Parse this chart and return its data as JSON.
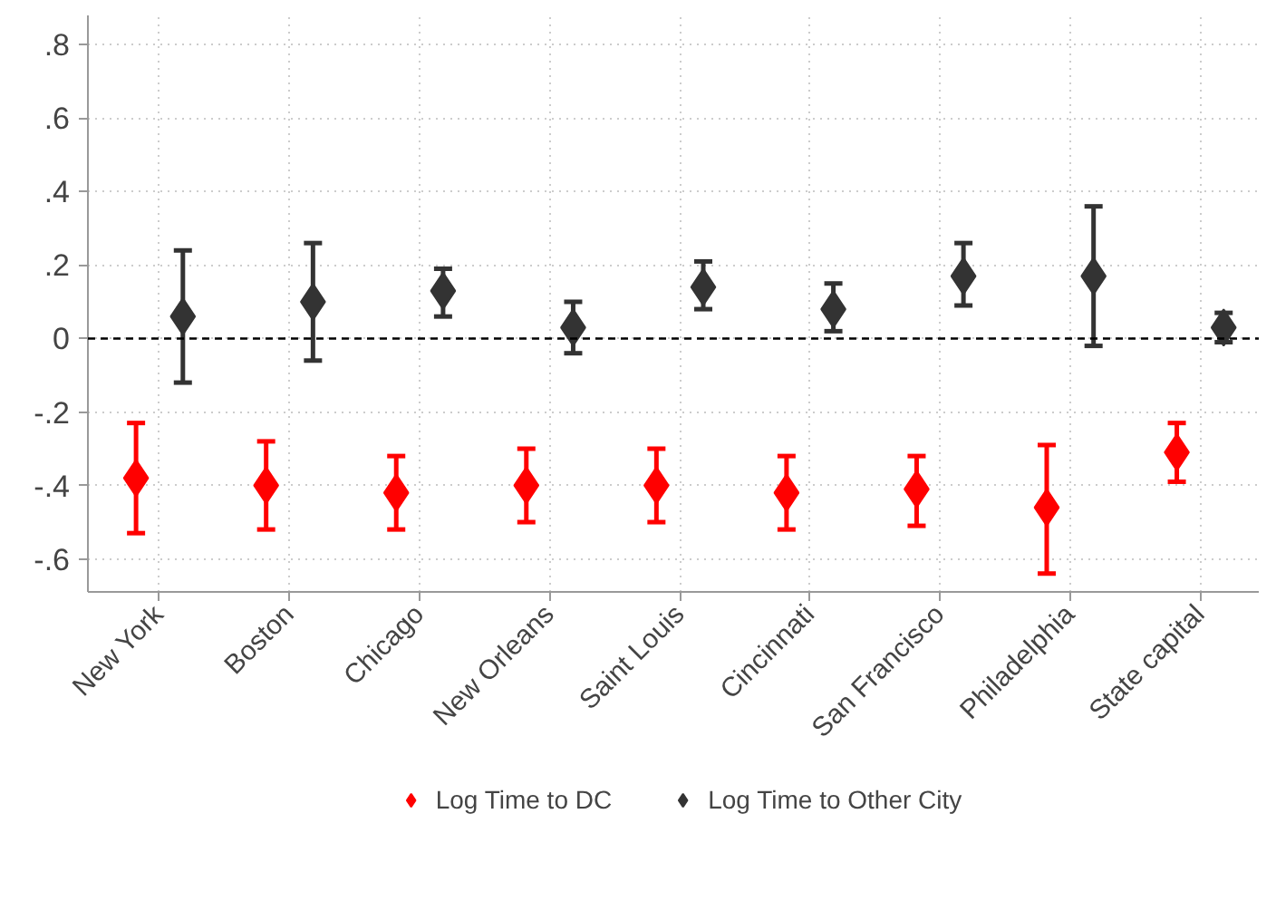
{
  "chart_data": {
    "type": "scatter",
    "categories": [
      "New York",
      "Boston",
      "Chicago",
      "New Orleans",
      "Saint Louis",
      "Cincinnati",
      "San Francisco",
      "Philadelphia",
      "State capital"
    ],
    "series": [
      {
        "name": "Log Time to DC",
        "color": "#ff0000",
        "values": [
          -0.38,
          -0.4,
          -0.42,
          -0.4,
          -0.4,
          -0.42,
          -0.41,
          -0.46,
          -0.31
        ],
        "errors": [
          [
            -0.53,
            -0.23
          ],
          [
            -0.52,
            -0.28
          ],
          [
            -0.52,
            -0.32
          ],
          [
            -0.5,
            -0.3
          ],
          [
            -0.5,
            -0.3
          ],
          [
            -0.52,
            -0.32
          ],
          [
            -0.51,
            -0.32
          ],
          [
            -0.64,
            -0.29
          ],
          [
            -0.39,
            -0.23
          ]
        ]
      },
      {
        "name": "Log Time to Other City",
        "color": "#333333",
        "values": [
          0.06,
          0.1,
          0.13,
          0.03,
          0.14,
          0.08,
          0.17,
          0.17,
          0.03
        ],
        "errors": [
          [
            -0.12,
            0.24
          ],
          [
            -0.06,
            0.26
          ],
          [
            0.06,
            0.19
          ],
          [
            -0.04,
            0.1
          ],
          [
            0.08,
            0.21
          ],
          [
            0.02,
            0.15
          ],
          [
            0.09,
            0.26
          ],
          [
            -0.02,
            0.36
          ],
          [
            -0.01,
            0.07
          ]
        ]
      }
    ],
    "ylim": [
      -0.69,
      0.88
    ],
    "yticks": [
      {
        "value": -0.6,
        "label": "-.6"
      },
      {
        "value": -0.4,
        "label": "-.4"
      },
      {
        "value": -0.2,
        "label": "-.2"
      },
      0,
      {
        "value": 0.2,
        "label": ".2"
      },
      {
        "value": 0.4,
        "label": ".4"
      },
      {
        "value": 0.6,
        "label": ".6"
      },
      {
        "value": 0.8,
        "label": ".8"
      }
    ],
    "ref_lines": [
      {
        "axis": "y",
        "value": 0,
        "color": "#000000",
        "line_style": "dashed"
      }
    ],
    "grid": true,
    "legend": "bottom",
    "marker": "diamond"
  }
}
